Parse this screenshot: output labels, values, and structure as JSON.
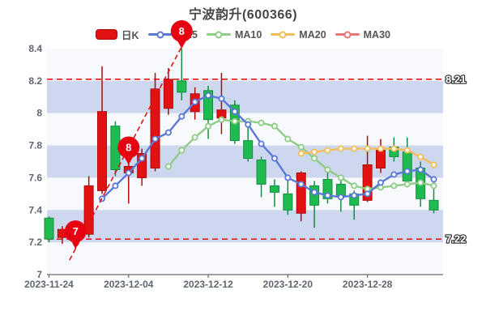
{
  "title": "宁波韵升(600366)",
  "legend": [
    {
      "label": "日K",
      "type": "swatch",
      "color": "#e31212"
    },
    {
      "label": "MA5",
      "type": "line",
      "color": "#5b79d6"
    },
    {
      "label": "MA10",
      "type": "line",
      "color": "#8fcc85"
    },
    {
      "label": "MA20",
      "type": "line",
      "color": "#f3bd5a"
    },
    {
      "label": "MA30",
      "type": "line",
      "color": "#e87676"
    }
  ],
  "chart_data": {
    "type": "candlestick",
    "dates": [
      "2023-11-24",
      "2023-11-27",
      "2023-11-28",
      "2023-11-29",
      "2023-11-30",
      "2023-12-01",
      "2023-12-04",
      "2023-12-05",
      "2023-12-06",
      "2023-12-07",
      "2023-12-08",
      "2023-12-11",
      "2023-12-12",
      "2023-12-13",
      "2023-12-14",
      "2023-12-15",
      "2023-12-18",
      "2023-12-19",
      "2023-12-20",
      "2023-12-21",
      "2023-12-22",
      "2023-12-25",
      "2023-12-26",
      "2023-12-27",
      "2023-12-28",
      "2023-12-29",
      "2024-01-02",
      "2024-01-03",
      "2024-01-04",
      "2024-01-05"
    ],
    "ohlc_order": [
      "open",
      "high",
      "low",
      "close"
    ],
    "ohlc": [
      [
        7.35,
        7.36,
        7.2,
        7.22
      ],
      [
        7.23,
        7.3,
        7.19,
        7.28
      ],
      [
        7.26,
        7.29,
        7.16,
        7.27
      ],
      [
        7.25,
        7.61,
        7.23,
        7.55
      ],
      [
        7.52,
        8.29,
        7.5,
        8.01
      ],
      [
        7.92,
        7.95,
        7.61,
        7.65
      ],
      [
        7.63,
        7.7,
        7.44,
        7.67
      ],
      [
        7.6,
        7.78,
        7.55,
        7.75
      ],
      [
        7.66,
        8.25,
        7.64,
        8.15
      ],
      [
        8.03,
        8.28,
        7.99,
        8.21
      ],
      [
        8.2,
        8.4,
        8.08,
        8.13
      ],
      [
        8.01,
        8.16,
        7.96,
        8.12
      ],
      [
        8.14,
        8.17,
        7.84,
        7.96
      ],
      [
        7.97,
        8.25,
        7.87,
        8.02
      ],
      [
        8.05,
        8.08,
        7.81,
        7.83
      ],
      [
        7.83,
        7.92,
        7.7,
        7.72
      ],
      [
        7.71,
        7.73,
        7.48,
        7.56
      ],
      [
        7.55,
        7.59,
        7.42,
        7.51
      ],
      [
        7.5,
        7.6,
        7.37,
        7.4
      ],
      [
        7.38,
        7.64,
        7.33,
        7.63
      ],
      [
        7.55,
        7.58,
        7.29,
        7.43
      ],
      [
        7.59,
        7.67,
        7.44,
        7.47
      ],
      [
        7.56,
        7.61,
        7.39,
        7.49
      ],
      [
        7.5,
        7.52,
        7.34,
        7.43
      ],
      [
        7.46,
        7.86,
        7.45,
        7.68
      ],
      [
        7.66,
        7.84,
        7.63,
        7.77
      ],
      [
        7.79,
        7.85,
        7.7,
        7.73
      ],
      [
        7.76,
        7.85,
        7.54,
        7.58
      ],
      [
        7.66,
        7.7,
        7.42,
        7.47
      ],
      [
        7.46,
        7.59,
        7.38,
        7.4
      ]
    ],
    "series": [
      {
        "name": "MA5",
        "start": 4,
        "color": "#5b79d6",
        "values": [
          7.47,
          7.55,
          7.63,
          7.72,
          7.84,
          7.88,
          7.98,
          8.07,
          8.11,
          8.09,
          8.01,
          7.93,
          7.81,
          7.72,
          7.6,
          7.56,
          7.51,
          7.49,
          7.48,
          7.49,
          7.5,
          7.57,
          7.62,
          7.64,
          7.65,
          7.59
        ]
      },
      {
        "name": "MA10",
        "start": 9,
        "color": "#8fcc85",
        "values": [
          7.67,
          7.77,
          7.85,
          7.92,
          7.96,
          7.95,
          7.95,
          7.94,
          7.92,
          7.84,
          7.79,
          7.72,
          7.65,
          7.6,
          7.55,
          7.53,
          7.54,
          7.55,
          7.56,
          7.57,
          7.55
        ]
      },
      {
        "name": "MA20",
        "start": 19,
        "color": "#f3bd5a",
        "values": [
          7.75,
          7.76,
          7.77,
          7.78,
          7.78,
          7.78,
          7.78,
          7.78,
          7.77,
          7.73,
          7.68
        ]
      },
      {
        "name": "MA30",
        "start": 29,
        "color": "#e87676",
        "values": []
      }
    ],
    "hlines": [
      {
        "value": 8.21,
        "label": "8.21",
        "color": "#e60000"
      },
      {
        "value": 7.22,
        "label": "7.22",
        "color": "#e60000"
      }
    ],
    "trendline": {
      "from_index": 1.55,
      "from_value": 7.09,
      "to_index": 10.05,
      "to_value": 8.42,
      "color": "#e41414"
    },
    "pins": [
      {
        "index": 2,
        "value": 7.16,
        "label": "7"
      },
      {
        "index": 6,
        "value": 7.68,
        "label": "8"
      },
      {
        "index": 10,
        "value": 8.4,
        "label": "8"
      }
    ],
    "pin_color": "#e60012",
    "ylim": [
      7.0,
      8.4
    ],
    "yticks": [
      "8.4",
      "8.2",
      "8",
      "7.8",
      "7.6",
      "7.4",
      "7.2",
      "7"
    ],
    "ytick_values": [
      8.4,
      8.2,
      8.0,
      7.8,
      7.6,
      7.4,
      7.2,
      7.0
    ],
    "xticks": [
      {
        "index": 0,
        "label": "2023-11-24"
      },
      {
        "index": 6,
        "label": "2023-12-04"
      },
      {
        "index": 12,
        "label": "2023-12-12"
      },
      {
        "index": 18,
        "label": "2023-12-20"
      },
      {
        "index": 24,
        "label": "2023-12-28"
      }
    ],
    "bands": [
      [
        8.0,
        8.2
      ],
      [
        7.6,
        7.8
      ],
      [
        7.2,
        7.4
      ]
    ],
    "colors": {
      "up_fill": "#e31212",
      "up_border": "#ab0d0d",
      "down_fill": "#1fba50",
      "down_border": "#128f40",
      "band": "#cdd8ee",
      "plot_bg": "#f8f9fc",
      "axis_text": "#5f6670",
      "axis_line": "#6a6a6a",
      "hline_label_fill": "#ffffff",
      "hline_label_stroke": "#3a3a3a"
    }
  }
}
